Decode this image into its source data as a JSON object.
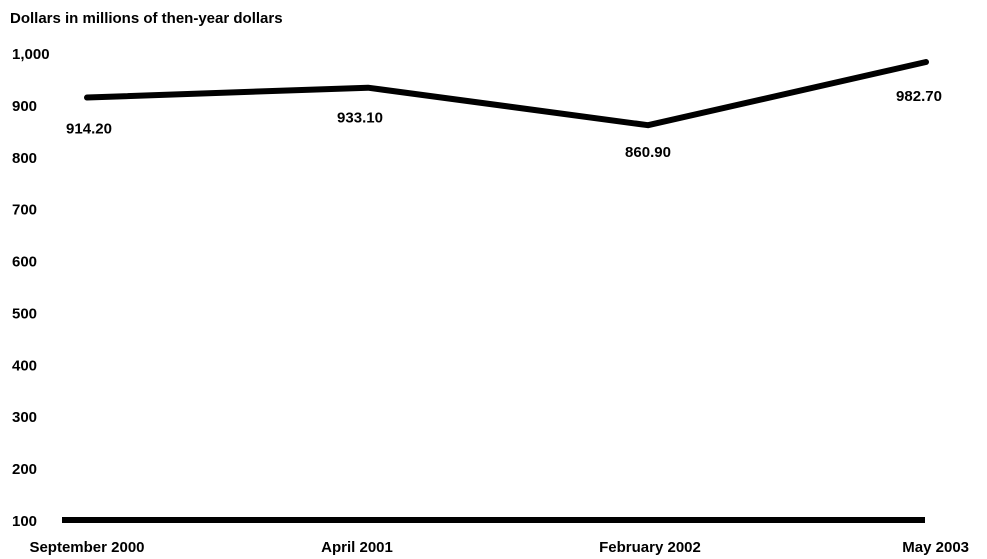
{
  "chart_data": {
    "type": "line",
    "title": "",
    "ylabel": "Dollars in millions of then-year dollars",
    "xlabel": "",
    "categories": [
      "September 2000",
      "April 2001",
      "February 2002",
      "May 2003"
    ],
    "series": [
      {
        "values": [
          914.2,
          933.1,
          860.9,
          982.7
        ],
        "data_labels": [
          "914.20",
          "933.10",
          "860.90",
          "982.70"
        ]
      }
    ],
    "ylim": [
      100,
      1000
    ],
    "yticks": [
      {
        "value": 100,
        "label": "100"
      },
      {
        "value": 200,
        "label": "200"
      },
      {
        "value": 300,
        "label": "300"
      },
      {
        "value": 400,
        "label": "400"
      },
      {
        "value": 500,
        "label": "500"
      },
      {
        "value": 600,
        "label": "600"
      },
      {
        "value": 700,
        "label": "700"
      },
      {
        "value": 800,
        "label": "800"
      },
      {
        "value": 900,
        "label": "900"
      },
      {
        "value": 1000,
        "label": "1,000"
      }
    ],
    "grid": false,
    "legend": "none",
    "line_color": "#000000"
  }
}
